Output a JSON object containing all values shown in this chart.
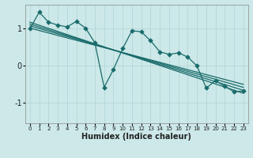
{
  "title": "",
  "xlabel": "Humidex (Indice chaleur)",
  "xlim": [
    -0.5,
    23.5
  ],
  "ylim": [
    -1.55,
    1.65
  ],
  "xticks": [
    0,
    1,
    2,
    3,
    4,
    5,
    6,
    7,
    8,
    9,
    10,
    11,
    12,
    13,
    14,
    15,
    16,
    17,
    18,
    19,
    20,
    21,
    22,
    23
  ],
  "yticks": [
    -1,
    0,
    1
  ],
  "bg_color": "#cce8e8",
  "line_color": "#1a6b6b",
  "grid_color": "#b0d4d4",
  "data_x": [
    0,
    1,
    2,
    3,
    4,
    5,
    6,
    7,
    8,
    9,
    10,
    11,
    12,
    13,
    14,
    15,
    16,
    17,
    18,
    19,
    20,
    21,
    22,
    23
  ],
  "data_y": [
    1.0,
    1.45,
    1.18,
    1.1,
    1.05,
    1.2,
    1.02,
    0.62,
    -0.58,
    -0.1,
    0.47,
    0.95,
    0.92,
    0.68,
    0.38,
    0.31,
    0.35,
    0.24,
    0.0,
    -0.6,
    -0.4,
    -0.55,
    -0.7,
    -0.68
  ],
  "reg_lines": [
    {
      "x": [
        0,
        23
      ],
      "y": [
        1.02,
        -0.5
      ]
    },
    {
      "x": [
        0,
        23
      ],
      "y": [
        1.08,
        -0.58
      ]
    },
    {
      "x": [
        0,
        23
      ],
      "y": [
        1.13,
        -0.66
      ]
    },
    {
      "x": [
        0,
        23
      ],
      "y": [
        1.18,
        -0.74
      ]
    }
  ],
  "marker": "D",
  "markersize": 2.8,
  "linewidth": 0.9,
  "reg_linewidth": 0.9,
  "spine_color": "#888888",
  "xlabel_fontsize": 7,
  "xtick_fontsize": 5.0,
  "ytick_fontsize": 7.0
}
